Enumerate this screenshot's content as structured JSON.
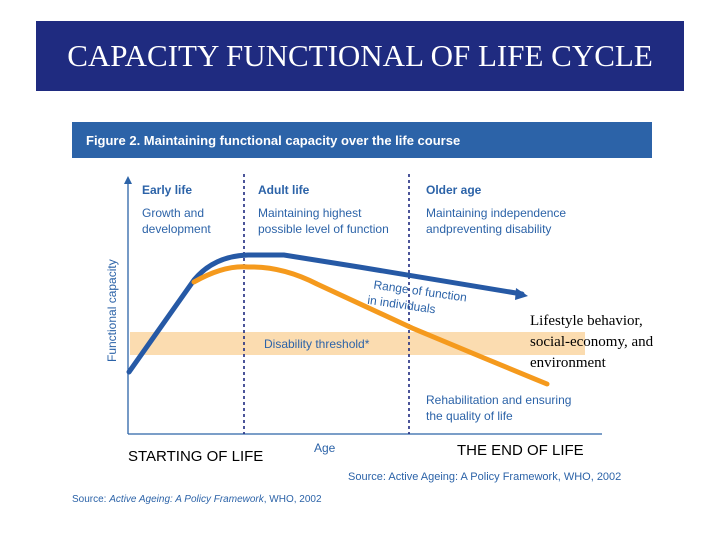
{
  "slide": {
    "title": "CAPACITY FUNCTIONAL OF LIFE CYCLE",
    "left_label": "STARTING OF LIFE",
    "right_label": "THE END OF LIFE",
    "side_note": [
      "Lifestyle behavior,",
      "social-economy, and",
      "environment"
    ]
  },
  "figure": {
    "header": "Figure 2. Maintaining functional capacity over the life course",
    "y_axis_label": "Functional capacity",
    "x_axis_label": "Age",
    "phases": [
      {
        "title": "Early life",
        "desc": [
          "Growth and",
          "development"
        ]
      },
      {
        "title": "Adult life",
        "desc": [
          "Maintaining highest",
          "possible level of function"
        ]
      },
      {
        "title": "Older age",
        "desc": [
          "Maintaining independence",
          "andpreventing disability"
        ]
      }
    ],
    "range_label": [
      "Range of function",
      "in individuals"
    ],
    "threshold_label": "Disability threshold*",
    "rehab_label": [
      "Rehabilitation and ensuring",
      "the quality of life"
    ],
    "source_inner": "Source: Active Ageing: A Policy Framework, WHO, 2002"
  },
  "page_source": {
    "prefix": "Source: ",
    "title": "Active Ageing: A Policy Framework",
    "suffix": ", WHO, 2002"
  },
  "colors": {
    "title_bg": "#1f2b80",
    "header_bg": "#2c63a8",
    "upper_curve": "#2659a5",
    "lower_curve": "#f59a1d",
    "threshold_band": "#fbdcb0",
    "phase_text": "#2c63a8"
  }
}
